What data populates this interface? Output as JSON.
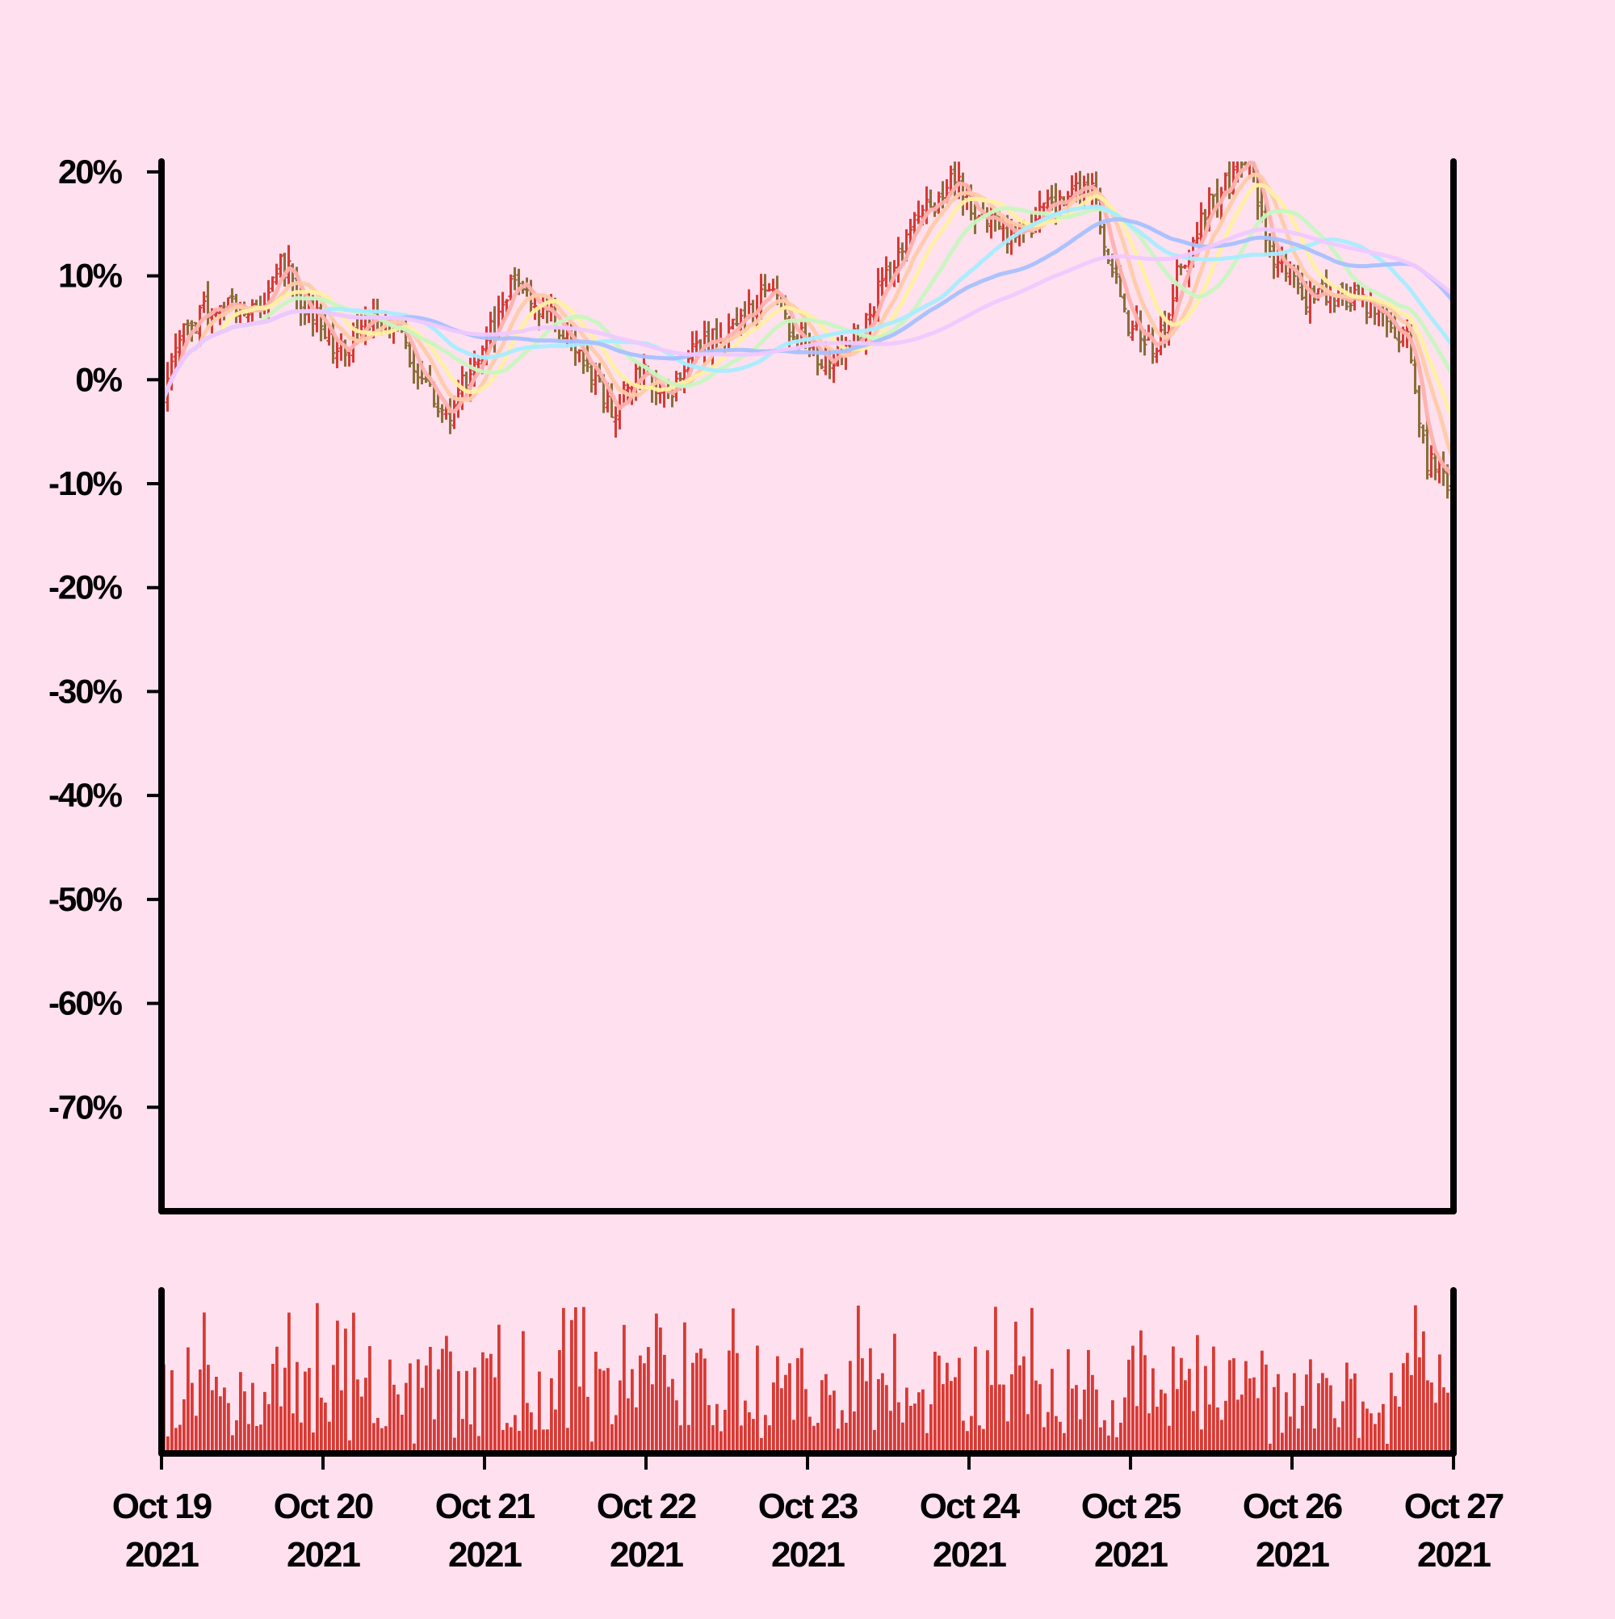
{
  "chart_data": {
    "type": "ohlc",
    "colors": {
      "background": "#ffe0ee",
      "up": "#d83a34",
      "down": "#8b6d3a",
      "volume": "#d83a34",
      "axis": "#000000"
    },
    "y_axis": {
      "ylim": [
        -80,
        21
      ],
      "ticks": [
        20,
        10,
        0,
        -10,
        -20,
        -30,
        -40,
        -50,
        -60,
        -70
      ],
      "tick_labels": [
        "20%",
        "10%",
        "0%",
        "-10%",
        "-20%",
        "-30%",
        "-40%",
        "-50%",
        "-60%",
        "-70%"
      ]
    },
    "x_axis": {
      "xlim": [
        0,
        8
      ],
      "ticks": [
        0,
        1,
        2,
        3,
        4,
        5,
        6,
        7,
        8
      ],
      "tick_labels_line1": [
        "Oct 19",
        "Oct 20",
        "Oct 21",
        "Oct 22",
        "Oct 23",
        "Oct 24",
        "Oct 25",
        "Oct 26",
        "Oct 27"
      ],
      "tick_labels_line2": [
        "2021",
        "2021",
        "2021",
        "2021",
        "2021",
        "2021",
        "2021",
        "2021",
        "2021"
      ]
    },
    "close_anchors": {
      "x": [
        0,
        0.15,
        0.3,
        0.6,
        0.75,
        0.9,
        1.1,
        1.3,
        1.45,
        1.6,
        1.75,
        1.9,
        2.05,
        2.2,
        2.4,
        2.6,
        2.8,
        2.95,
        3.1,
        3.3,
        3.55,
        3.75,
        3.95,
        4.1,
        4.3,
        4.5,
        4.7,
        4.9,
        5.1,
        5.3,
        5.55,
        5.75,
        5.85,
        6.0,
        6.15,
        6.35,
        6.5,
        6.7,
        6.9,
        7.1,
        7.3,
        7.5,
        7.7,
        7.85,
        8.0
      ],
      "y": [
        -1,
        5,
        7,
        7,
        11,
        7,
        3,
        6,
        6,
        0,
        -4,
        0,
        5,
        10,
        6,
        2,
        -3,
        1,
        -2,
        3,
        5,
        8,
        4,
        2,
        4,
        10,
        16,
        19,
        15,
        14,
        17,
        19,
        12,
        5,
        3,
        12,
        17,
        21,
        12,
        8,
        8,
        7,
        4,
        -8,
        -10
      ]
    },
    "moving_averages": [
      {
        "window": 5,
        "color": "#ffb0ac"
      },
      {
        "window": 10,
        "color": "#ffcaa8"
      },
      {
        "window": 15,
        "color": "#fff0a0"
      },
      {
        "window": 25,
        "color": "#c8f5c0"
      },
      {
        "window": 40,
        "color": "#a8ecff"
      },
      {
        "window": 60,
        "color": "#a8c0ff"
      },
      {
        "window": 90,
        "color": "#f0c8ff"
      }
    ],
    "volume": {
      "max": 100
    }
  }
}
